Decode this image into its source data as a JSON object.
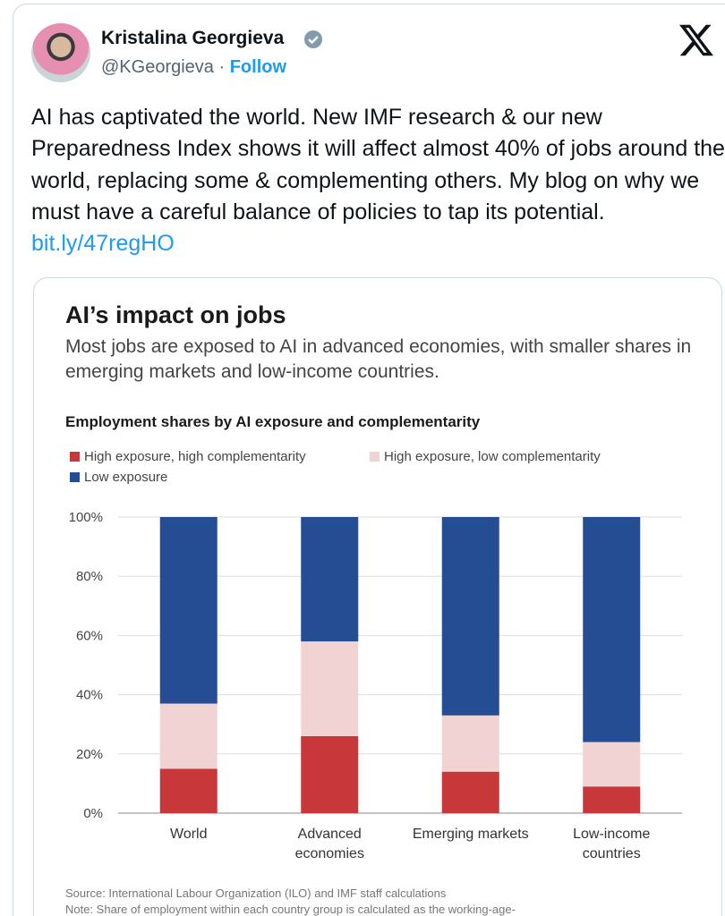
{
  "tweet": {
    "author_name": "Kristalina Georgieva",
    "handle": "@KGeorgieva",
    "separator": "·",
    "follow": "Follow",
    "text": "AI has captivated the world. New IMF research & our new Preparedness Index shows it will affect almost 40% of jobs around the world, replacing some & complementing others. My blog on why we must have a careful balance of policies to tap its potential.",
    "link": "bit.ly/47regHO"
  },
  "chart_data": {
    "type": "stacked_bar",
    "title": "AI’s impact on jobs",
    "subtitle": "Most jobs are exposed to AI in advanced economies, with smaller shares in emerging markets and low-income countries.",
    "heading": "Employment shares by AI exposure and complementarity",
    "categories": [
      "World",
      "Advanced economies",
      "Emerging markets",
      "Low-income countries"
    ],
    "series": [
      {
        "name": "High exposure, high complementarity",
        "color": "#c8373a",
        "values": [
          15,
          26,
          14,
          9
        ]
      },
      {
        "name": "High exposure, low complementarity",
        "color": "#f2d3d3",
        "values": [
          22,
          32,
          19,
          15
        ]
      },
      {
        "name": "Low exposure",
        "color": "#244d94",
        "values": [
          63,
          42,
          67,
          76
        ]
      }
    ],
    "ylim": [
      0,
      100
    ],
    "yticks": [
      {
        "value": 0,
        "label": "0%"
      },
      {
        "value": 20,
        "label": "20%"
      },
      {
        "value": 40,
        "label": "40%"
      },
      {
        "value": 60,
        "label": "60%"
      },
      {
        "value": 80,
        "label": "80%"
      },
      {
        "value": 100,
        "label": "100%"
      }
    ],
    "grid": true,
    "source": "Source: International Labour Organization (ILO) and IMF staff calculations",
    "note": "Note: Share of employment within each country group is calculated as the working-age-"
  }
}
